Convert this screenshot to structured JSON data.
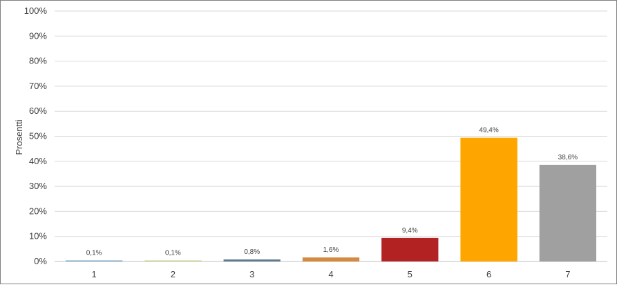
{
  "chart_data": {
    "type": "bar",
    "ylabel": "Prosentti",
    "xlabel": "",
    "title": "",
    "ylim": [
      0,
      100
    ],
    "yticks": [
      0,
      10,
      20,
      30,
      40,
      50,
      60,
      70,
      80,
      90,
      100
    ],
    "ytick_labels": [
      "0%",
      "10%",
      "20%",
      "30%",
      "40%",
      "50%",
      "60%",
      "70%",
      "80%",
      "90%",
      "100%"
    ],
    "grid": true,
    "categories": [
      "1",
      "2",
      "3",
      "4",
      "5",
      "6",
      "7"
    ],
    "values": [
      0.1,
      0.1,
      0.8,
      1.6,
      9.4,
      49.4,
      38.6
    ],
    "data_labels": [
      "0,1%",
      "0,1%",
      "0,8%",
      "1,6%",
      "9,4%",
      "49,4%",
      "38,6%"
    ],
    "colors": [
      "#7aa6c6",
      "#c3d58b",
      "#607a8f",
      "#d48a40",
      "#b22222",
      "#ffa500",
      "#a0a0a0"
    ]
  }
}
